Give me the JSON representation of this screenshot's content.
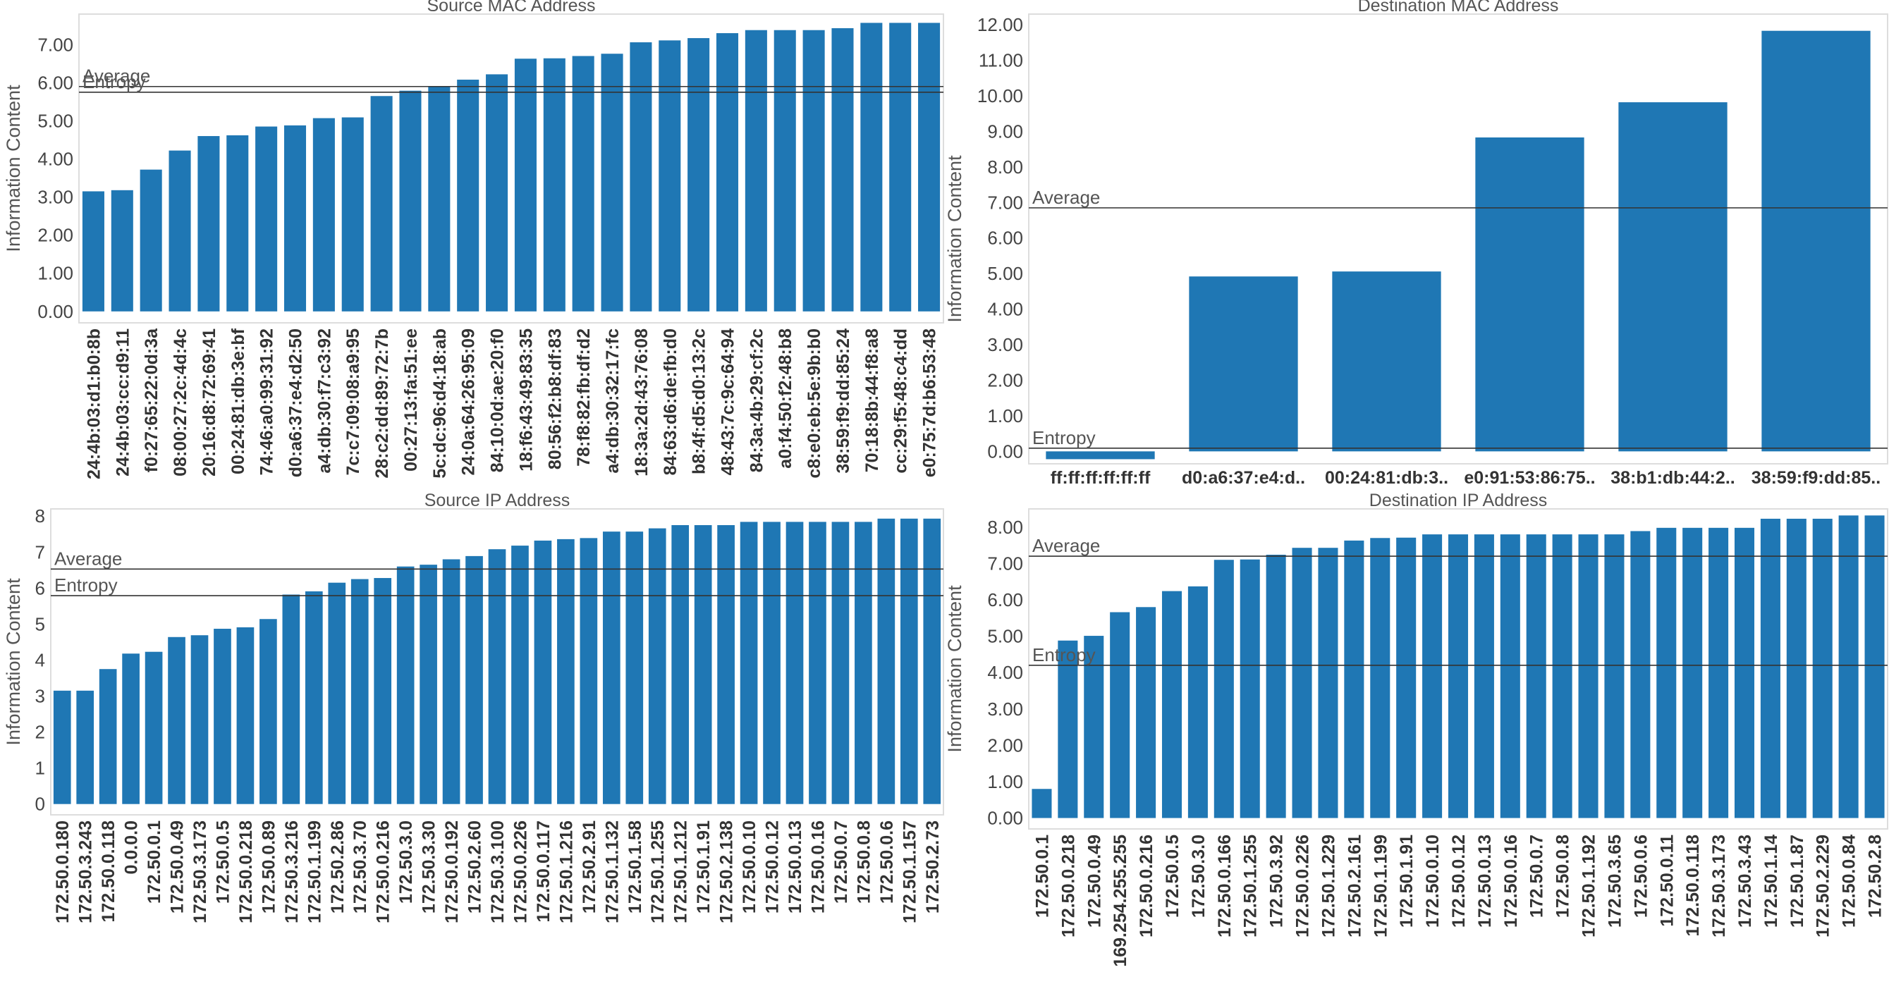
{
  "chart_data": [
    {
      "type": "bar",
      "title": "Source MAC Address",
      "ylabel": "Information Content",
      "yticks": [
        "0.00",
        "1.00",
        "2.00",
        "3.00",
        "4.00",
        "5.00",
        "6.00",
        "7.00"
      ],
      "ylim": [
        -0.3,
        7.8
      ],
      "categories": [
        "24:4b:03:d1:b0:8b",
        "24:4b:03:cc:d9:11",
        "f0:27:65:22:0d:3a",
        "08:00:27:2c:4d:4c",
        "20:16:d8:72:69:41",
        "00:24:81:db:3e:bf",
        "74:46:a0:99:31:92",
        "d0:a6:37:e4:d2:50",
        "a4:db:30:f7:c3:92",
        "7c:c7:09:08:a9:95",
        "28:c2:dd:89:72:7b",
        "00:27:13:fa:51:ee",
        "5c:dc:96:d4:18:ab",
        "24:0a:64:26:95:09",
        "84:10:0d:ae:20:f0",
        "18:f6:43:49:83:35",
        "80:56:f2:b8:df:83",
        "78:f8:82:fb:df:d2",
        "a4:db:30:32:17:fc",
        "18:3a:2d:43:76:08",
        "84:63:d6:de:fb:d0",
        "b8:4f:d5:d0:13:2c",
        "48:43:7c:9c:64:94",
        "84:3a:4b:29:cf:2c",
        "a0:f4:50:f2:48:b8",
        "c8:e0:eb:5e:9b:b0",
        "38:59:f9:dd:85:24",
        "70:18:8b:44:f8:a8",
        "cc:29:f5:48:c4:dd",
        "e0:75:7d:b6:53:48"
      ],
      "values": [
        3.15,
        3.18,
        3.72,
        4.22,
        4.6,
        4.62,
        4.85,
        4.88,
        5.07,
        5.09,
        5.65,
        5.79,
        5.89,
        6.08,
        6.22,
        6.63,
        6.64,
        6.7,
        6.76,
        7.06,
        7.11,
        7.17,
        7.3,
        7.38,
        7.38,
        7.38,
        7.43,
        7.57,
        7.57,
        7.57
      ],
      "reference_lines": [
        {
          "label": "Average",
          "value": 5.9
        },
        {
          "label": "Entropy",
          "value": 5.75
        }
      ]
    },
    {
      "type": "bar",
      "title": "Destination MAC Address",
      "ylabel": "Information Content",
      "yticks": [
        "0.00",
        "1.00",
        "2.00",
        "3.00",
        "4.00",
        "5.00",
        "6.00",
        "7.00",
        "8.00",
        "9.00",
        "10.00",
        "11.00",
        "12.00"
      ],
      "ylim": [
        -0.35,
        12.3
      ],
      "categories": [
        "ff:ff:ff:ff:ff:ff",
        "d0:a6:37:e4:d..",
        "00:24:81:db:3..",
        "e0:91:53:86:75..",
        "38:b1:db:44:2..",
        "38:59:f9:dd:85.."
      ],
      "values": [
        -0.22,
        4.92,
        5.06,
        8.83,
        9.82,
        11.83
      ],
      "reference_lines": [
        {
          "label": "Average",
          "value": 6.85
        },
        {
          "label": "Entropy",
          "value": 0.09
        }
      ]
    },
    {
      "type": "bar",
      "title": "Source IP Address",
      "ylabel": "Information Content",
      "yticks": [
        "0",
        "1",
        "2",
        "3",
        "4",
        "5",
        "6",
        "7",
        "8"
      ],
      "ylim": [
        -0.3,
        8.2
      ],
      "categories": [
        "172.50.0.180",
        "172.50.3.243",
        "172.50.0.118",
        "0.0.0.0",
        "172.50.0.1",
        "172.50.0.49",
        "172.50.3.173",
        "172.50.0.5",
        "172.50.0.218",
        "172.50.0.89",
        "172.50.3.216",
        "172.50.1.199",
        "172.50.2.86",
        "172.50.3.70",
        "172.50.0.216",
        "172.50.3.0",
        "172.50.3.30",
        "172.50.0.192",
        "172.50.2.60",
        "172.50.3.100",
        "172.50.0.226",
        "172.50.0.117",
        "172.50.1.216",
        "172.50.2.91",
        "172.50.1.132",
        "172.50.1.58",
        "172.50.1.255",
        "172.50.1.212",
        "172.50.1.91",
        "172.50.2.138",
        "172.50.0.10",
        "172.50.0.12",
        "172.50.0.13",
        "172.50.0.16",
        "172.50.0.7",
        "172.50.0.8",
        "172.50.0.6",
        "172.50.1.157",
        "172.50.2.73"
      ],
      "values": [
        3.15,
        3.15,
        3.75,
        4.18,
        4.23,
        4.64,
        4.69,
        4.87,
        4.91,
        5.14,
        5.82,
        5.91,
        6.15,
        6.25,
        6.28,
        6.6,
        6.65,
        6.8,
        6.89,
        7.08,
        7.18,
        7.32,
        7.36,
        7.39,
        7.57,
        7.57,
        7.66,
        7.75,
        7.75,
        7.75,
        7.84,
        7.84,
        7.84,
        7.84,
        7.84,
        7.84,
        7.93,
        7.93,
        7.93
      ],
      "reference_lines": [
        {
          "label": "Average",
          "value": 6.53
        },
        {
          "label": "Entropy",
          "value": 5.79
        }
      ]
    },
    {
      "type": "bar",
      "title": "Destination IP Address",
      "ylabel": "Information Content",
      "yticks": [
        "0.00",
        "1.00",
        "2.00",
        "3.00",
        "4.00",
        "5.00",
        "6.00",
        "7.00",
        "8.00"
      ],
      "ylim": [
        -0.3,
        8.5
      ],
      "categories": [
        "172.50.0.1",
        "172.50.0.218",
        "172.50.0.49",
        "169.254.255.255",
        "172.50.0.216",
        "172.50.0.5",
        "172.50.3.0",
        "172.50.0.166",
        "172.50.1.255",
        "172.50.3.92",
        "172.50.0.226",
        "172.50.1.229",
        "172.50.2.161",
        "172.50.1.199",
        "172.50.1.91",
        "172.50.0.10",
        "172.50.0.12",
        "172.50.0.13",
        "172.50.0.16",
        "172.50.0.7",
        "172.50.0.8",
        "172.50.1.192",
        "172.50.3.65",
        "172.50.0.6",
        "172.50.0.11",
        "172.50.0.118",
        "172.50.3.173",
        "172.50.3.43",
        "172.50.1.14",
        "172.50.1.87",
        "172.50.2.229",
        "172.50.0.84",
        "172.50.2.8"
      ],
      "values": [
        0.8,
        4.88,
        5.01,
        5.66,
        5.8,
        6.24,
        6.37,
        7.1,
        7.11,
        7.24,
        7.43,
        7.43,
        7.63,
        7.7,
        7.71,
        7.8,
        7.8,
        7.8,
        7.8,
        7.8,
        7.8,
        7.8,
        7.8,
        7.89,
        7.98,
        7.98,
        7.98,
        7.98,
        8.23,
        8.23,
        8.23,
        8.32,
        8.32
      ],
      "reference_lines": [
        {
          "label": "Average",
          "value": 7.2
        },
        {
          "label": "Entropy",
          "value": 4.2
        }
      ]
    }
  ],
  "colors": {
    "bar": "#1f77b4",
    "reference_line": "#333333",
    "frame": "#dddddd"
  }
}
